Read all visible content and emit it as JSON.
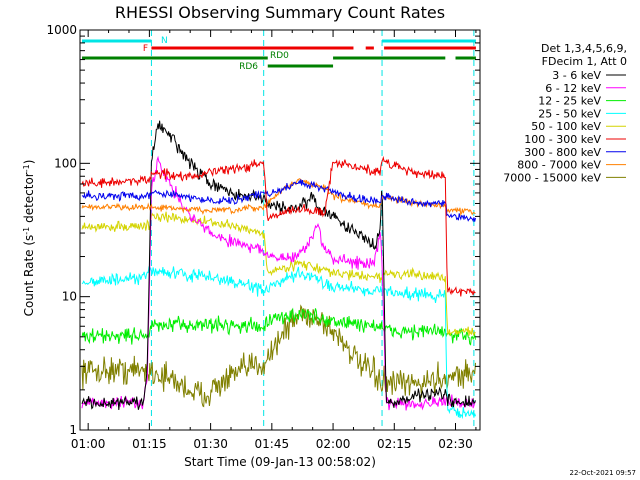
{
  "chart_data": {
    "type": "line",
    "title": "RHESSI Observing Summary Count Rates",
    "xlabel": "Start Time (09-Jan-13 00:58:02)",
    "ylabel": "Count Rate (s",
    "ylabel_sup1": "-1",
    "ylabel_mid": " detector",
    "ylabel_sup2": "-1",
    "ylabel_end": ")",
    "yscale": "log",
    "ylim": [
      1,
      1000
    ],
    "xlim_minutes": [
      58.0,
      156.0
    ],
    "x_tick_minutes": [
      60,
      75,
      90,
      105,
      120,
      135,
      150
    ],
    "x_tick_labels": [
      "01:00",
      "01:15",
      "01:30",
      "01:45",
      "02:00",
      "02:15",
      "02:30"
    ],
    "y_tick_values": [
      1,
      10,
      100,
      1000
    ],
    "y_tick_labels": [
      "1",
      "10",
      "100",
      "1000"
    ],
    "legend_header": [
      "Det 1,3,4,5,6,9,",
      "FDecim 1, Att 0"
    ],
    "date_stamp": "22-Oct-2021 09:57",
    "vertical_lines_minutes": [
      75.5,
      103.0,
      132.0,
      154.5
    ],
    "flag_bars": [
      {
        "label": "N",
        "color": "#00e5e5",
        "level": 0,
        "segments": [
          [
            58.5,
            75.5
          ],
          [
            132.0,
            155.0
          ]
        ]
      },
      {
        "label": "F",
        "color": "#ee0000",
        "level": 1,
        "segments": [
          [
            75.5,
            125.0
          ],
          [
            128.0,
            130.0
          ],
          [
            132.5,
            155.0
          ]
        ]
      },
      {
        "label": "RD0",
        "color": "#008000",
        "level": 2,
        "segments": [
          [
            58.5,
            104.0
          ],
          [
            120.0,
            147.5
          ],
          [
            150.0,
            155.0
          ]
        ]
      },
      {
        "label": "RD6",
        "color": "#008000",
        "level": 3,
        "segments": [
          [
            104.0,
            120.0
          ]
        ]
      }
    ],
    "series": [
      {
        "name": "3 - 6 keV",
        "color": "#000000",
        "sigma": 0.04,
        "x": [
          58.5,
          73.5,
          74.5,
          75.5,
          77,
          80,
          85,
          90,
          95,
          100,
          103,
          104,
          110,
          115,
          117,
          120,
          123,
          127,
          130,
          131.5,
          132,
          133,
          135,
          140,
          145,
          147.5,
          148,
          150,
          155
        ],
        "y": [
          1.6,
          1.6,
          3.0,
          100,
          200,
          160,
          100,
          70,
          60,
          55,
          55,
          50,
          45,
          55,
          45,
          40,
          35,
          28,
          24,
          30,
          80,
          1.7,
          1.6,
          1.8,
          1.9,
          1.8,
          1.7,
          1.6,
          1.6
        ]
      },
      {
        "name": "6 - 12 keV",
        "color": "#ff00ff",
        "sigma": 0.04,
        "x": [
          58.5,
          73.5,
          74.5,
          75.5,
          77,
          80,
          85,
          90,
          95,
          100,
          103,
          104,
          110,
          114,
          116,
          118,
          120,
          123,
          127,
          130,
          131.5,
          132,
          133,
          140,
          147.5,
          148,
          155
        ],
        "y": [
          1.6,
          1.6,
          2.5,
          60,
          110,
          70,
          40,
          30,
          26,
          24,
          22,
          20,
          19,
          25,
          35,
          22,
          19,
          19,
          18,
          17,
          30,
          18,
          1.6,
          1.6,
          1.6,
          1.6,
          1.6
        ]
      },
      {
        "name": "12 - 25 keV",
        "color": "#00ee00",
        "sigma": 0.05,
        "x": [
          58.5,
          75,
          75.5,
          90,
          103,
          104,
          112,
          120,
          132,
          132.5,
          147.5,
          148,
          155
        ],
        "y": [
          5.0,
          5.2,
          6.0,
          6.2,
          6.0,
          6.5,
          7.5,
          6.5,
          6.0,
          5.5,
          5.5,
          5.0,
          5.0
        ]
      },
      {
        "name": "25 - 50 keV",
        "color": "#00ffff",
        "sigma": 0.04,
        "x": [
          58.5,
          73,
          75.5,
          80,
          90,
          100,
          103,
          104,
          112,
          120,
          132,
          132.5,
          147.5,
          148,
          155
        ],
        "y": [
          13,
          13.5,
          16,
          15,
          14,
          12,
          11,
          11.5,
          15,
          12,
          11,
          11,
          10,
          1.4,
          1.3
        ]
      },
      {
        "name": "50 - 100 keV",
        "color": "#d4d400",
        "sigma": 0.03,
        "x": [
          58.5,
          75,
          75.5,
          85,
          95,
          103,
          104,
          112,
          120,
          132,
          132.5,
          147.5,
          148,
          155
        ],
        "y": [
          33,
          34,
          40,
          38,
          34,
          30,
          15,
          18,
          15,
          14,
          15,
          14,
          5.5,
          5.5
        ]
      },
      {
        "name": "100 - 300 keV",
        "color": "#ee0000",
        "sigma": 0.03,
        "x": [
          58.5,
          75,
          75.5,
          85,
          95,
          103,
          104,
          110,
          114,
          118,
          120,
          125,
          131.5,
          132,
          140,
          147.5,
          148,
          155
        ],
        "y": [
          70,
          75,
          85,
          80,
          90,
          100,
          38,
          45,
          45,
          42,
          105,
          95,
          85,
          105,
          85,
          80,
          11,
          11
        ]
      },
      {
        "name": "300 - 800 keV",
        "color": "#0000ee",
        "sigma": 0.025,
        "x": [
          58.5,
          75,
          75.5,
          85,
          95,
          103,
          104,
          112,
          120,
          125,
          131.5,
          132,
          140,
          147.5,
          148,
          155
        ],
        "y": [
          57,
          57,
          62,
          55,
          52,
          60,
          58,
          72,
          62,
          55,
          52,
          58,
          50,
          50,
          40,
          38
        ]
      },
      {
        "name": "800 - 7000 keV",
        "color": "#ff8000",
        "sigma": 0.02,
        "x": [
          58.5,
          75,
          85,
          95,
          103,
          108,
          112,
          118,
          120,
          125,
          131.5,
          132,
          140,
          147.5,
          148,
          155
        ],
        "y": [
          47,
          47,
          45,
          44,
          47,
          65,
          75,
          65,
          57,
          52,
          47,
          57,
          50,
          48,
          45,
          43
        ]
      },
      {
        "name": "7000 - 15000 keV",
        "color": "#808000",
        "sigma": 0.09,
        "x": [
          58.5,
          75,
          80,
          85,
          88,
          95,
          100,
          103,
          108,
          112,
          116,
          120,
          123,
          126,
          130,
          133,
          140,
          150,
          155
        ],
        "y": [
          2.8,
          2.8,
          2.4,
          2.0,
          1.8,
          2.5,
          3.0,
          3.2,
          5.5,
          7.5,
          7.0,
          5.5,
          4.5,
          3.2,
          2.6,
          2.2,
          2.2,
          2.6,
          2.7
        ]
      }
    ]
  }
}
